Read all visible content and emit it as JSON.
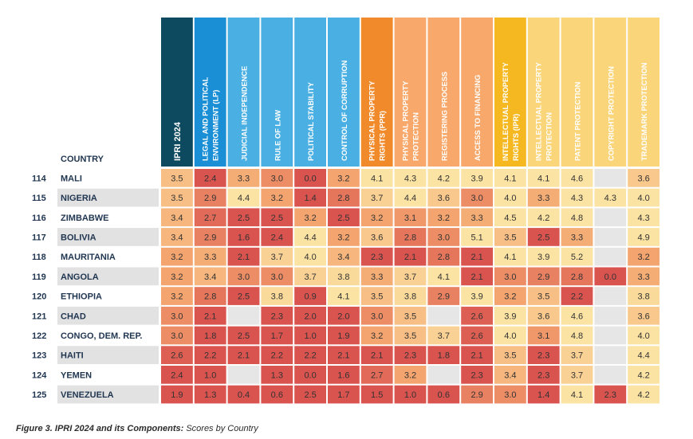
{
  "chart_data": {
    "type": "heatmap",
    "row_header": "COUNTRY",
    "columns": [
      {
        "label": "IPRI 2024",
        "color": "#0d4a5f"
      },
      {
        "label": "LEGAL AND POLITICAL ENVIRONMENT (LP)",
        "color": "#1a8fd6"
      },
      {
        "label": "JUDICIAL INDEPENDENCE",
        "color": "#4ab0e3"
      },
      {
        "label": "RULE OF LAW",
        "color": "#4ab0e3"
      },
      {
        "label": "POLITICAL STABILITY",
        "color": "#4ab0e3"
      },
      {
        "label": "CONTROL OF CORRUPTION",
        "color": "#4ab0e3"
      },
      {
        "label": "PHYSICAL PROPERTY RIGHTS (PPR)",
        "color": "#f08a2a"
      },
      {
        "label": "PHYSICAL PROPERTY PROTECTION",
        "color": "#f7a86a"
      },
      {
        "label": "REGISTERING PROCESS",
        "color": "#f7a86a"
      },
      {
        "label": "ACCESS TO FINANCING",
        "color": "#f7a86a"
      },
      {
        "label": "INTELLECTUAL PROPERTY RIGHTS (IPR)",
        "color": "#f6b820"
      },
      {
        "label": "INTELLECTUAL PROPERTY PROTECTION",
        "color": "#fbd57a"
      },
      {
        "label": "PATENT PROTECTION",
        "color": "#fbd57a"
      },
      {
        "label": "COPYRIGHT PROTECTION",
        "color": "#fbd57a"
      },
      {
        "label": "TRADEMARK PROTECTION",
        "color": "#fbd57a"
      }
    ],
    "rows": [
      {
        "rank": "114",
        "country": "MALI",
        "values": [
          3.5,
          2.4,
          3.3,
          3.0,
          0.0,
          3.2,
          4.1,
          4.3,
          4.2,
          3.9,
          4.1,
          4.1,
          4.6,
          null,
          3.6
        ]
      },
      {
        "rank": "115",
        "country": "NIGERIA",
        "values": [
          3.5,
          2.9,
          4.4,
          3.2,
          1.4,
          2.8,
          3.7,
          4.4,
          3.6,
          3.0,
          4.0,
          3.3,
          4.3,
          4.3,
          4.0
        ]
      },
      {
        "rank": "116",
        "country": "ZIMBABWE",
        "values": [
          3.4,
          2.7,
          2.5,
          2.5,
          3.2,
          2.5,
          3.2,
          3.1,
          3.2,
          3.3,
          4.5,
          4.2,
          4.8,
          null,
          4.3
        ]
      },
      {
        "rank": "117",
        "country": "BOLIVIA",
        "values": [
          3.4,
          2.9,
          1.6,
          2.4,
          4.4,
          3.2,
          3.6,
          2.8,
          3.0,
          5.1,
          3.5,
          2.5,
          3.3,
          null,
          4.9
        ]
      },
      {
        "rank": "118",
        "country": "MAURITANIA",
        "values": [
          3.2,
          3.3,
          2.1,
          3.7,
          4.0,
          3.4,
          2.3,
          2.1,
          2.8,
          2.1,
          4.1,
          3.9,
          5.2,
          null,
          3.2
        ]
      },
      {
        "rank": "119",
        "country": "ANGOLA",
        "values": [
          3.2,
          3.4,
          3.0,
          3.0,
          3.7,
          3.8,
          3.3,
          3.7,
          4.1,
          2.1,
          3.0,
          2.9,
          2.8,
          0.0,
          3.3
        ]
      },
      {
        "rank": "120",
        "country": "ETHIOPIA",
        "values": [
          3.2,
          2.8,
          2.5,
          3.8,
          0.9,
          4.1,
          3.5,
          3.8,
          2.9,
          3.9,
          3.2,
          3.5,
          2.2,
          null,
          3.8
        ]
      },
      {
        "rank": "121",
        "country": "CHAD",
        "values": [
          3.0,
          2.1,
          null,
          2.3,
          2.0,
          2.0,
          3.0,
          3.5,
          null,
          2.6,
          3.9,
          3.6,
          4.6,
          null,
          3.6
        ]
      },
      {
        "rank": "122",
        "country": "CONGO, DEM. REP.",
        "values": [
          3.0,
          1.8,
          2.5,
          1.7,
          1.0,
          1.9,
          3.2,
          3.5,
          3.7,
          2.6,
          4.0,
          3.1,
          4.8,
          null,
          4.0
        ]
      },
      {
        "rank": "123",
        "country": "HAITI",
        "values": [
          2.6,
          2.2,
          2.1,
          2.2,
          2.2,
          2.1,
          2.1,
          2.3,
          1.8,
          2.1,
          3.5,
          2.3,
          3.7,
          null,
          4.4
        ]
      },
      {
        "rank": "124",
        "country": "YEMEN",
        "values": [
          2.4,
          1.0,
          null,
          1.3,
          0.0,
          1.6,
          2.7,
          3.2,
          null,
          2.3,
          3.4,
          2.3,
          3.7,
          null,
          4.2
        ]
      },
      {
        "rank": "125",
        "country": "VENEZUELA",
        "values": [
          1.9,
          1.3,
          0.4,
          0.6,
          2.5,
          1.7,
          1.5,
          1.0,
          0.6,
          2.9,
          3.0,
          1.4,
          4.1,
          2.3,
          4.2
        ]
      }
    ],
    "cell_colors": {
      "low": "#d9534f",
      "mid": "#f4a46e",
      "high": "#fbe3a3",
      "missing": "#e6e6e6"
    },
    "text_color": "#333333",
    "caption_lead": "Figure 3. IPRI 2024 and its Components:",
    "caption_rest": " Scores by Country"
  }
}
